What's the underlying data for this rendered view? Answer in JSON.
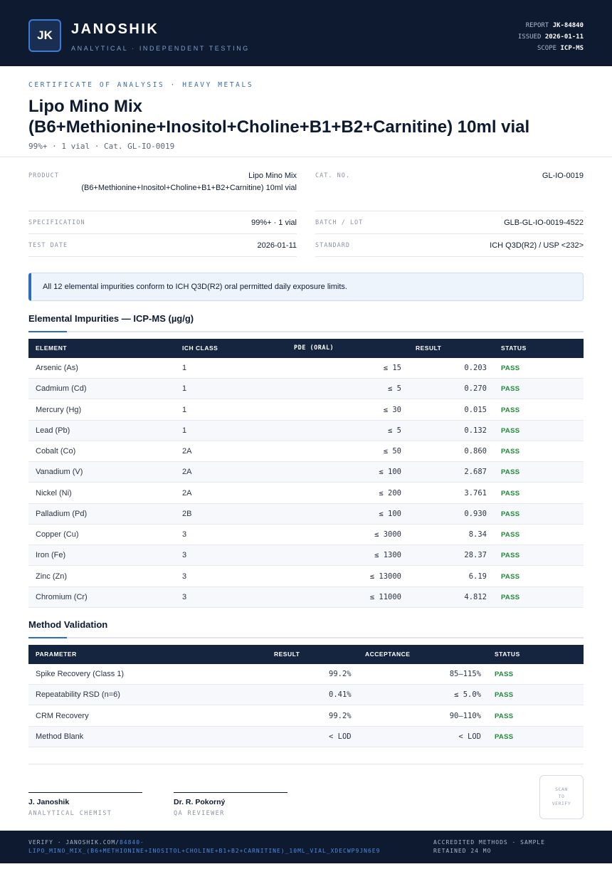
{
  "header": {
    "logo": "JK",
    "brand": "JANOSHIK",
    "tagline": "ANALYTICAL · INDEPENDENT TESTING",
    "report_label": "REPORT",
    "report_value": "JK-84840",
    "issued_label": "ISSUED",
    "issued_value": "2026-01-11",
    "scope_label": "SCOPE",
    "scope_value": "ICP-MS"
  },
  "doc": {
    "kicker": "CERTIFICATE OF ANALYSIS · HEAVY METALS",
    "title_line1": "Lipo Mino Mix",
    "title_line2": "(B6+Methionine+Inositol+Choline+B1+B2+Carnitine) 10ml vial",
    "subtitle": "99%+ · 1 vial  ·  Cat. GL-IO-0019"
  },
  "info": {
    "product_label": "PRODUCT",
    "product_value": "Lipo Mino Mix (B6+Methionine+Inositol+Choline+B1+B2+Carnitine) 10ml vial",
    "cat_label": "CAT. NO.",
    "cat_value": "GL-IO-0019",
    "spec_label": "SPECIFICATION",
    "spec_value": "99%+ · 1 vial",
    "batch_label": "BATCH / LOT",
    "batch_value": "GLB-GL-IO-0019-4522",
    "date_label": "TEST DATE",
    "date_value": "2026-01-11",
    "standard_label": "STANDARD",
    "standard_value": "ICH Q3D(R2) / USP <232>"
  },
  "notice": "All 12 elemental impurities conform to ICH Q3D(R2) oral permitted daily exposure limits.",
  "impurities": {
    "title": "Elemental Impurities — ICP-MS (µg/g)",
    "headers": [
      "ELEMENT",
      "ICH CLASS",
      "PDE (ORAL)",
      "RESULT",
      "STATUS"
    ],
    "rows": [
      {
        "element": "Arsenic (As)",
        "class": "1",
        "pde": "≤ 15",
        "result": "0.203",
        "status": "PASS"
      },
      {
        "element": "Cadmium (Cd)",
        "class": "1",
        "pde": "≤ 5",
        "result": "0.270",
        "status": "PASS"
      },
      {
        "element": "Mercury (Hg)",
        "class": "1",
        "pde": "≤ 30",
        "result": "0.015",
        "status": "PASS"
      },
      {
        "element": "Lead (Pb)",
        "class": "1",
        "pde": "≤ 5",
        "result": "0.132",
        "status": "PASS"
      },
      {
        "element": "Cobalt (Co)",
        "class": "2A",
        "pde": "≤ 50",
        "result": "0.860",
        "status": "PASS"
      },
      {
        "element": "Vanadium (V)",
        "class": "2A",
        "pde": "≤ 100",
        "result": "2.687",
        "status": "PASS"
      },
      {
        "element": "Nickel (Ni)",
        "class": "2A",
        "pde": "≤ 200",
        "result": "3.761",
        "status": "PASS"
      },
      {
        "element": "Palladium (Pd)",
        "class": "2B",
        "pde": "≤ 100",
        "result": "0.930",
        "status": "PASS"
      },
      {
        "element": "Copper (Cu)",
        "class": "3",
        "pde": "≤ 3000",
        "result": "8.34",
        "status": "PASS"
      },
      {
        "element": "Iron (Fe)",
        "class": "3",
        "pde": "≤ 1300",
        "result": "28.37",
        "status": "PASS"
      },
      {
        "element": "Zinc (Zn)",
        "class": "3",
        "pde": "≤ 13000",
        "result": "6.19",
        "status": "PASS"
      },
      {
        "element": "Chromium (Cr)",
        "class": "3",
        "pde": "≤ 11000",
        "result": "4.812",
        "status": "PASS"
      }
    ]
  },
  "validation": {
    "title": "Method Validation",
    "headers": [
      "PARAMETER",
      "RESULT",
      "ACCEPTANCE",
      "STATUS"
    ],
    "rows": [
      {
        "parameter": "Spike Recovery (Class 1)",
        "result": "99.2%",
        "acceptance": "85–115%",
        "status": "PASS"
      },
      {
        "parameter": "Repeatability RSD (n=6)",
        "result": "0.41%",
        "acceptance": "≤ 5.0%",
        "status": "PASS"
      },
      {
        "parameter": "CRM Recovery",
        "result": "99.2%",
        "acceptance": "90–110%",
        "status": "PASS"
      },
      {
        "parameter": "Method Blank",
        "result": "< LOD",
        "acceptance": "< LOD",
        "status": "PASS"
      }
    ]
  },
  "signatures": [
    {
      "name": "J. Janoshik",
      "role": "ANALYTICAL CHEMIST"
    },
    {
      "name": "Dr. R. Pokorný",
      "role": "QA REVIEWER"
    }
  ],
  "qr": {
    "line1": "SCAN",
    "line2": "TO",
    "line3": "VERIFY"
  },
  "footer": {
    "verify_prefix": "VERIFY · JANOSHIK.COM/",
    "verify_link": "84840-LIPO_MINO_MIX_(B6+METHIONINE+INOSITOL+CHOLINE+B1+B2+CARNITINE)_10ML_VIAL_XDECWP9JN6E9",
    "right": "ACCREDITED METHODS · SAMPLE RETAINED 24 MO"
  }
}
